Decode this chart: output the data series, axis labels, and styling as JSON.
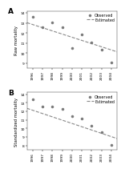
{
  "panel_A": {
    "label": "A",
    "ylabel": "Raw mortality",
    "observed_x": [
      1996,
      1997,
      1998,
      1999,
      2000,
      2001,
      2002,
      2003,
      2004
    ],
    "observed_y": [
      13.6,
      12.55,
      13.05,
      12.55,
      10.5,
      11.85,
      11.05,
      10.35,
      9.05
    ],
    "formula_slope": -0.314,
    "formula_intercept": 639.58,
    "ylim": [
      8.5,
      14.2
    ],
    "yticks": [
      9.0,
      10.0,
      11.0,
      12.0,
      13.0,
      14.0
    ]
  },
  "panel_B": {
    "label": "B",
    "ylabel": "Standardized mortality",
    "observed_x": [
      1996,
      1997,
      1998,
      1999,
      2000,
      2001,
      2002,
      2003,
      2004
    ],
    "observed_y": [
      13.4,
      12.55,
      12.6,
      12.25,
      11.4,
      11.2,
      10.3,
      9.6,
      8.1
    ],
    "formula_slope": -0.383,
    "formula_intercept": 776.59,
    "ylim": [
      7.5,
      14.2
    ],
    "yticks": [
      8.0,
      9.0,
      10.0,
      11.0,
      12.0,
      13.0,
      14.0
    ]
  },
  "xtick_labels": [
    "1996",
    "1997",
    "1998",
    "1999",
    "2000",
    "2001",
    "2002",
    "2003",
    "2004"
  ],
  "xticks": [
    1996,
    1997,
    1998,
    1999,
    2000,
    2001,
    2002,
    2003,
    2004
  ],
  "xlim": [
    1995.4,
    2004.6
  ],
  "observed_color": "#777777",
  "line_color": "#888888",
  "background_color": "#ffffff",
  "legend_observed": "Observed",
  "legend_estimated": "Estimated",
  "marker_size": 4.5,
  "fontsize_label": 3.8,
  "fontsize_tick": 3.2,
  "fontsize_legend": 3.5,
  "fontsize_panel_label": 6.5
}
